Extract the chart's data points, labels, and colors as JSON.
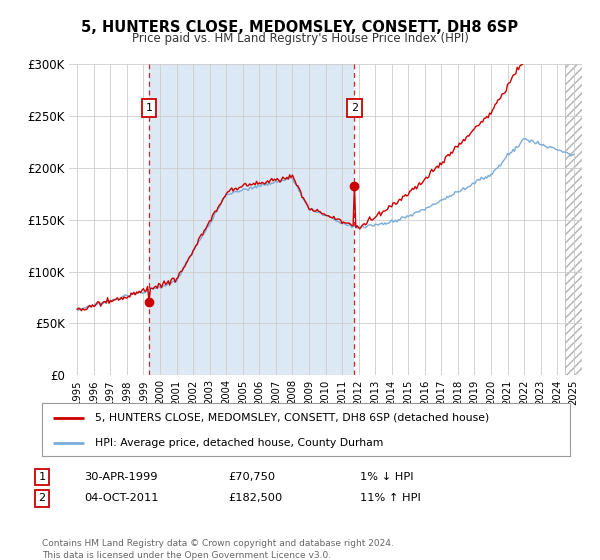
{
  "title": "5, HUNTERS CLOSE, MEDOMSLEY, CONSETT, DH8 6SP",
  "subtitle": "Price paid vs. HM Land Registry's House Price Index (HPI)",
  "background_color": "#ffffff",
  "plot_bg_color": "#ffffff",
  "shaded_region_color": "#dce9f5",
  "red_line_color": "#cc0000",
  "blue_line_color": "#7aacda",
  "marker1_x": 1999.33,
  "marker1_y": 70750,
  "marker2_x": 2011.75,
  "marker2_y": 182500,
  "marker1_date": "30-APR-1999",
  "marker1_price": "£70,750",
  "marker1_hpi_text": "1% ↓ HPI",
  "marker2_date": "04-OCT-2011",
  "marker2_price": "£182,500",
  "marker2_hpi_text": "11% ↑ HPI",
  "legend_line1": "5, HUNTERS CLOSE, MEDOMSLEY, CONSETT, DH8 6SP (detached house)",
  "legend_line2": "HPI: Average price, detached house, County Durham",
  "footer": "Contains HM Land Registry data © Crown copyright and database right 2024.\nThis data is licensed under the Open Government Licence v3.0.",
  "ylim": [
    0,
    300000
  ],
  "xlim": [
    1994.5,
    2025.5
  ],
  "yticks": [
    0,
    50000,
    100000,
    150000,
    200000,
    250000,
    300000
  ],
  "ytick_labels": [
    "£0",
    "£50K",
    "£100K",
    "£150K",
    "£200K",
    "£250K",
    "£300K"
  ],
  "xticks": [
    1995,
    1996,
    1997,
    1998,
    1999,
    2000,
    2001,
    2002,
    2003,
    2004,
    2005,
    2006,
    2007,
    2008,
    2009,
    2010,
    2011,
    2012,
    2013,
    2014,
    2015,
    2016,
    2017,
    2018,
    2019,
    2020,
    2021,
    2022,
    2023,
    2024,
    2025
  ]
}
